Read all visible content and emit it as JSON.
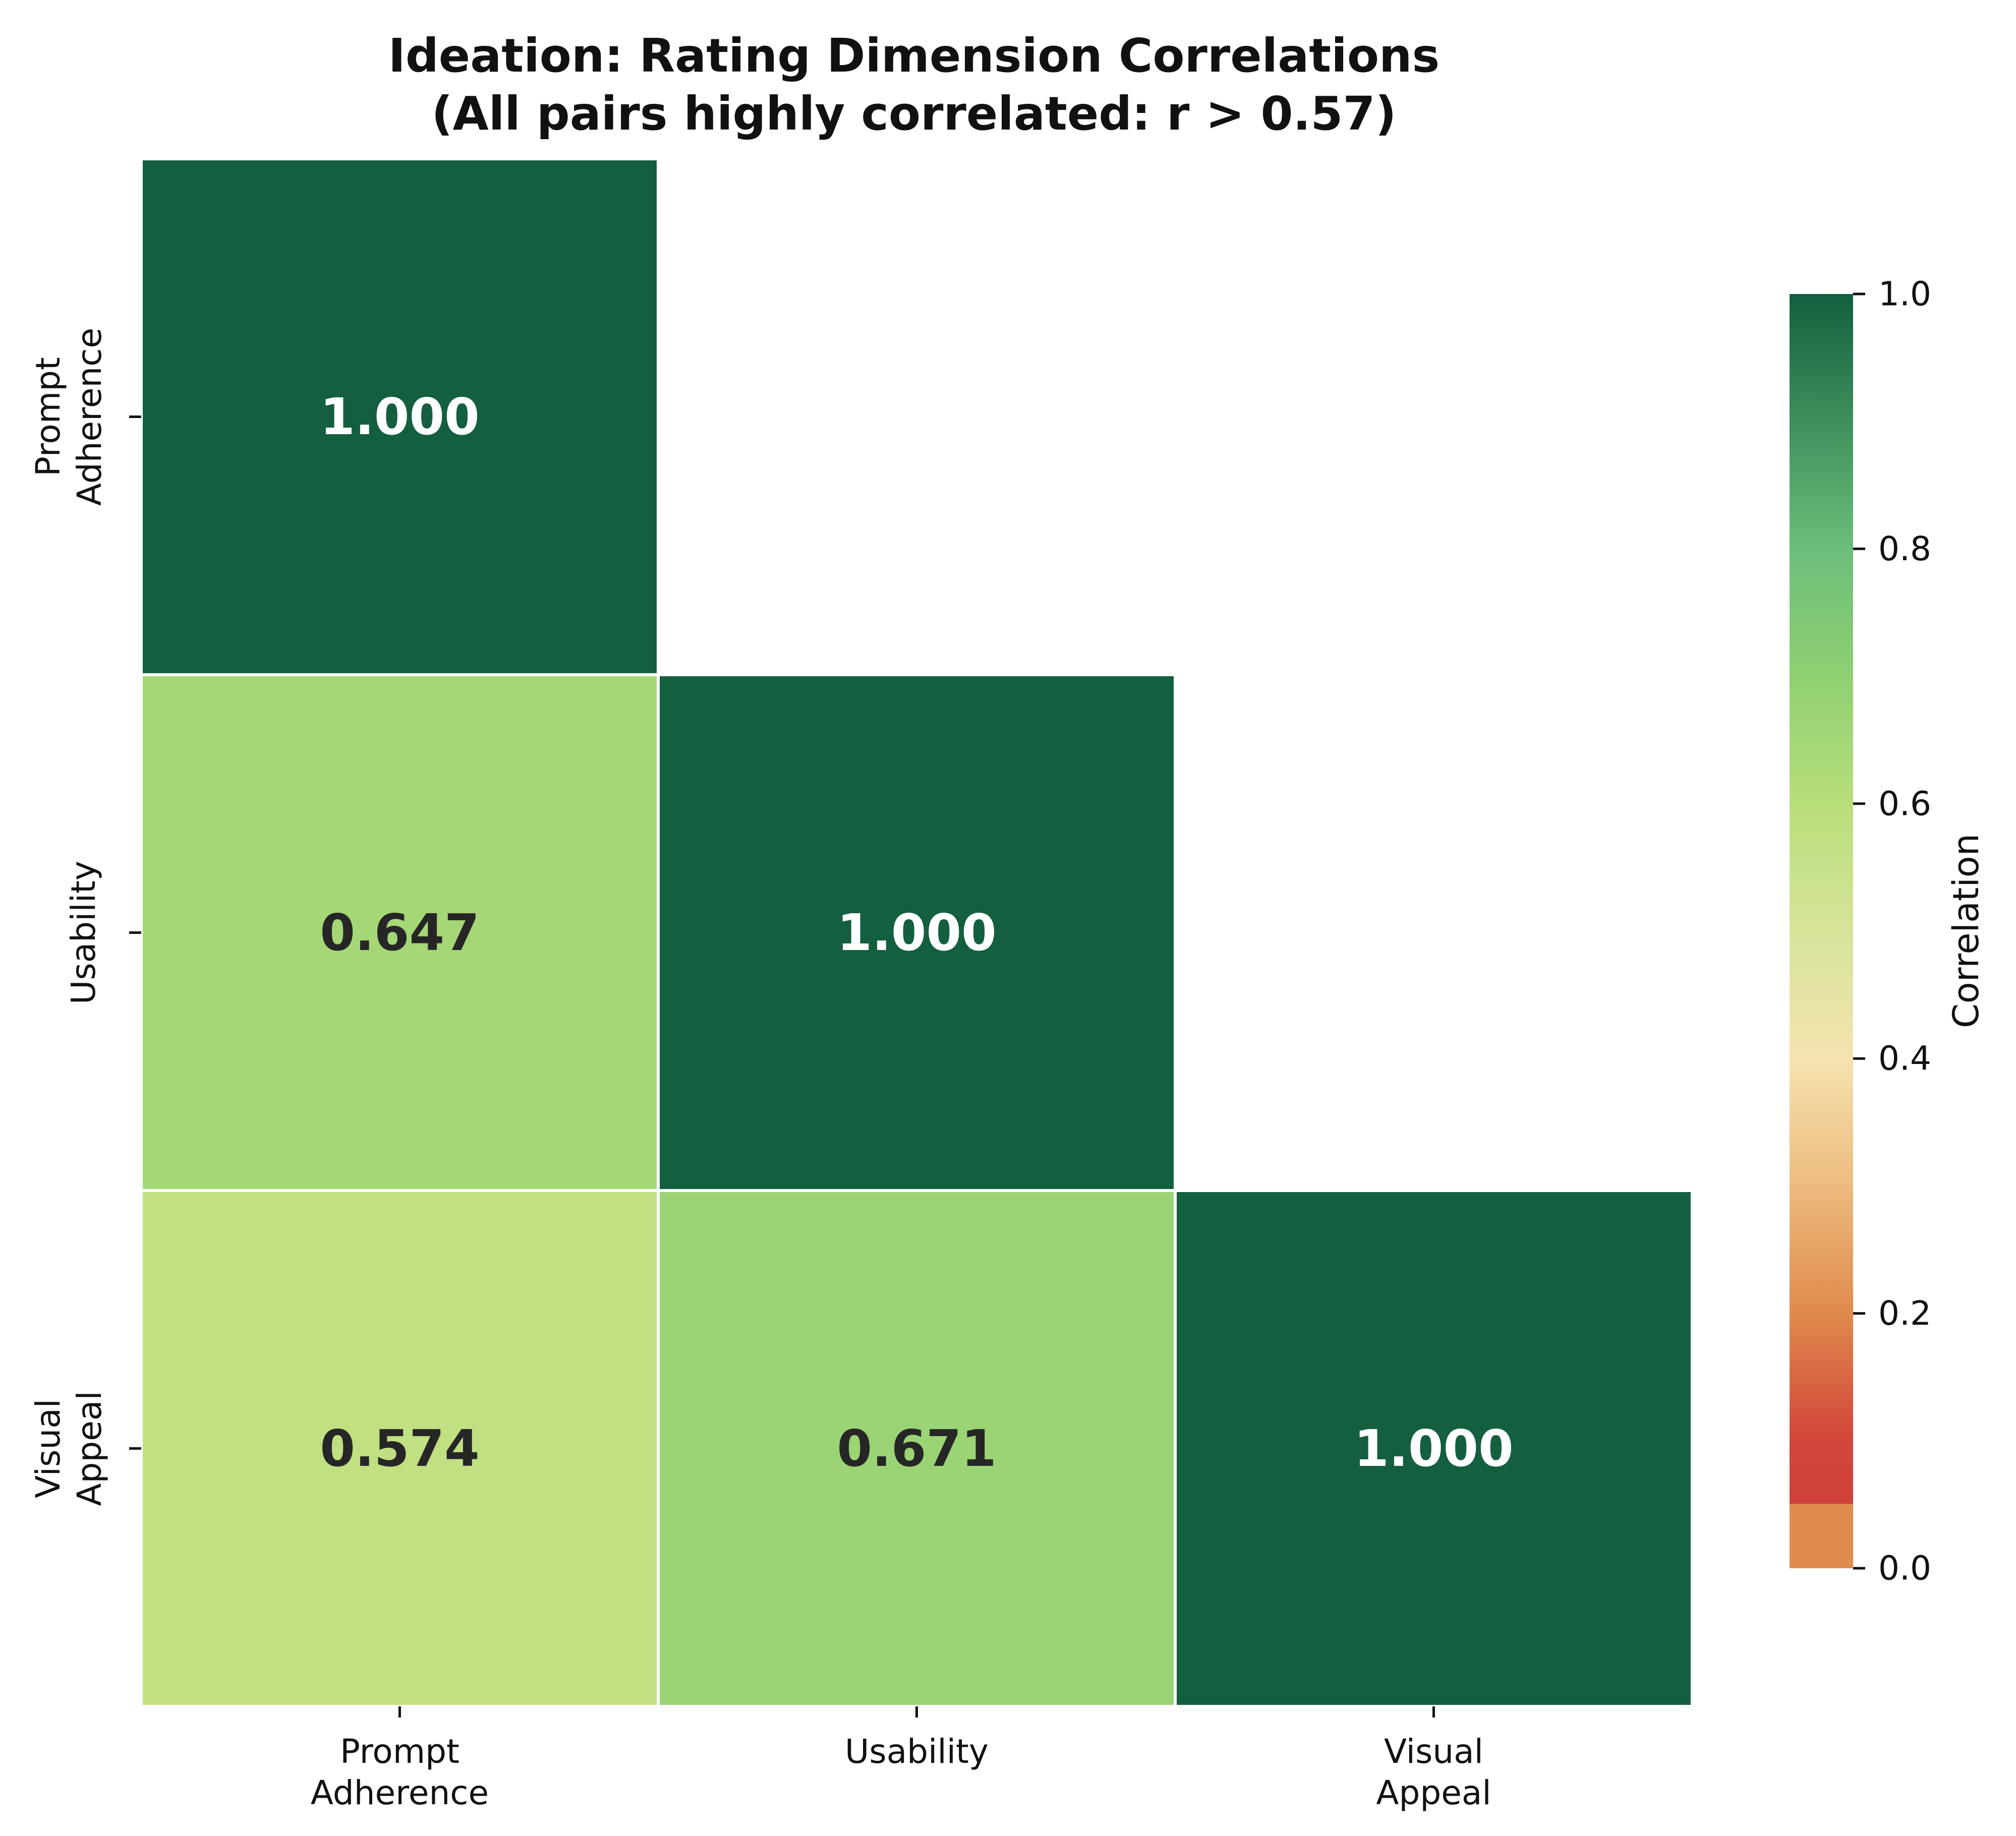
{
  "chart_data": {
    "type": "heatmap",
    "title_lines": [
      "Ideation: Rating Dimension Correlations",
      "(All pairs highly correlated: r > 0.57)"
    ],
    "x_labels": [
      [
        "Prompt",
        "Adherence"
      ],
      [
        "Usability"
      ],
      [
        "Visual",
        "Appeal"
      ]
    ],
    "y_labels": [
      [
        "Prompt",
        "Adherence"
      ],
      [
        "Usability"
      ],
      [
        "Visual",
        "Appeal"
      ]
    ],
    "cells": [
      {
        "row": 0,
        "col": 0,
        "value": 1.0,
        "label": "1.000"
      },
      {
        "row": 1,
        "col": 0,
        "value": 0.647,
        "label": "0.647"
      },
      {
        "row": 1,
        "col": 1,
        "value": 1.0,
        "label": "1.000"
      },
      {
        "row": 2,
        "col": 0,
        "value": 0.574,
        "label": "0.574"
      },
      {
        "row": 2,
        "col": 1,
        "value": 0.671,
        "label": "0.671"
      },
      {
        "row": 2,
        "col": 2,
        "value": 1.0,
        "label": "1.000"
      }
    ],
    "mask": "upper-triangle",
    "colorbar": {
      "label": "Correlation",
      "range": [
        0.0,
        1.0
      ],
      "ticks": [
        0.0,
        0.2,
        0.4,
        0.6,
        0.8,
        1.0
      ],
      "tick_labels": [
        "0.0",
        "0.2",
        "0.4",
        "0.6",
        "0.8",
        "1.0"
      ],
      "colormap": [
        {
          "v": 0.0,
          "color": "#e08c4e"
        },
        {
          "v": 0.05,
          "color": "#e08c4e"
        },
        {
          "v": 0.051,
          "color": "#d0403a"
        },
        {
          "v": 0.1,
          "color": "#d2453a"
        },
        {
          "v": 0.2,
          "color": "#e08a4d"
        },
        {
          "v": 0.3,
          "color": "#edbb7e"
        },
        {
          "v": 0.4,
          "color": "#f5e3b0"
        },
        {
          "v": 0.5,
          "color": "#d6e49a"
        },
        {
          "v": 0.6,
          "color": "#b8de7a"
        },
        {
          "v": 0.7,
          "color": "#8fd072"
        },
        {
          "v": 0.8,
          "color": "#6cbe7b"
        },
        {
          "v": 0.9,
          "color": "#3e8f5c"
        },
        {
          "v": 1.0,
          "color": "#135f3f"
        }
      ]
    },
    "cell_text_colors": {
      "dark": "#262626",
      "light": "#ffffff"
    }
  }
}
